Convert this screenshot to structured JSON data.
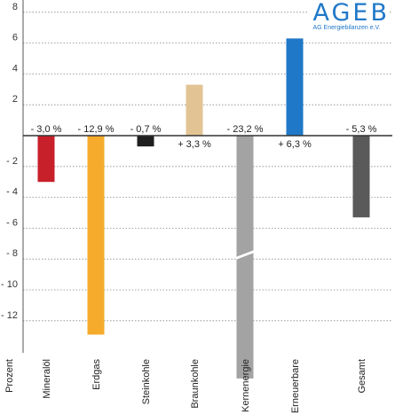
{
  "logo": {
    "name": "AGEB",
    "subtitle": "AG Energiebilanzen e.V."
  },
  "chart_data": {
    "type": "bar",
    "ylabel": "Prozent",
    "ylim": [
      -13.5,
      8
    ],
    "yticks": [
      8,
      6,
      4,
      2,
      0,
      -2,
      -4,
      -6,
      -8,
      -10,
      -12
    ],
    "ytick_labels": [
      "8",
      "6",
      "4",
      "2",
      "",
      "- 2",
      "- 4",
      "- 6",
      "- 8",
      "- 10",
      "- 12"
    ],
    "grid": true,
    "categories": [
      "Mineralöl",
      "Erdgas",
      "Steinkohle",
      "Braunkohle",
      "Kernenergie",
      "Erneuerbare",
      "Gesamt"
    ],
    "values": [
      -3.0,
      -12.9,
      -0.7,
      3.3,
      -23.2,
      6.3,
      -5.3
    ],
    "value_labels": [
      "- 3,0 %",
      "- 12,9 %",
      "- 0,7 %",
      "+ 3,3 %",
      "- 23,2 %",
      "+ 6,3 %",
      "- 5,3 %"
    ],
    "colors": [
      "#c8202a",
      "#f6ab2c",
      "#1f1f1f",
      "#e2c494",
      "#a3a3a3",
      "#1f78c8",
      "#5a5a5a"
    ],
    "broken_axis_value": -13.5
  }
}
